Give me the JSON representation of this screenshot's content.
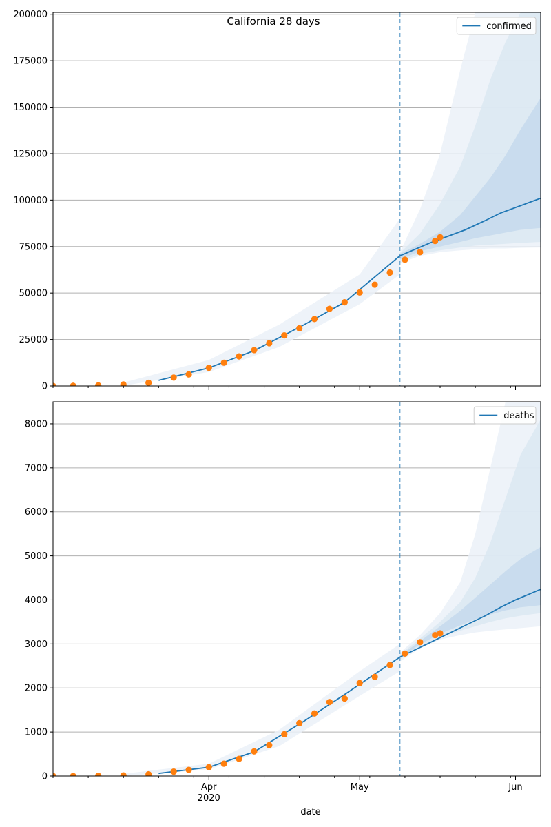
{
  "chart_data": [
    {
      "type": "line",
      "title": "California 28 days",
      "xlabel": "",
      "ylabel": "",
      "ylim": [
        0,
        201000
      ],
      "grid": "y-major",
      "legend": "top-right",
      "yticks": [
        0,
        25000,
        50000,
        75000,
        100000,
        125000,
        150000,
        175000,
        200000
      ],
      "xlim": [
        "2020-03-01",
        "2020-06-06"
      ],
      "xticks_major": [
        {
          "date": "2020-04-01",
          "label": "Apr",
          "label2": "2020"
        },
        {
          "date": "2020-05-01",
          "label": "May",
          "label2": ""
        },
        {
          "date": "2020-06-01",
          "label": "Jun",
          "label2": ""
        }
      ],
      "vline_date": "2020-05-09",
      "series": [
        {
          "name": "confirmed",
          "kind": "line",
          "color": "#1f77b4",
          "x": [
            "2020-03-22",
            "2020-04-01",
            "2020-04-10",
            "2020-04-20",
            "2020-04-28",
            "2020-05-09",
            "2020-05-15",
            "2020-05-22",
            "2020-05-26",
            "2020-05-29",
            "2020-06-01",
            "2020-06-06"
          ],
          "y": [
            3000,
            9700,
            19000,
            33000,
            45000,
            70000,
            77000,
            84000,
            89000,
            93000,
            96000,
            101000
          ]
        },
        {
          "name": "",
          "kind": "scatter",
          "color": "#ff7f0e",
          "x": [
            "2020-03-01",
            "2020-03-05",
            "2020-03-10",
            "2020-03-15",
            "2020-03-20",
            "2020-03-25",
            "2020-03-28",
            "2020-04-01",
            "2020-04-04",
            "2020-04-07",
            "2020-04-10",
            "2020-04-13",
            "2020-04-16",
            "2020-04-19",
            "2020-04-22",
            "2020-04-25",
            "2020-04-28",
            "2020-05-01",
            "2020-05-04",
            "2020-05-07",
            "2020-05-10",
            "2020-05-13",
            "2020-05-16",
            "2020-05-17"
          ],
          "y": [
            0,
            100,
            300,
            800,
            1700,
            4500,
            6200,
            9800,
            12500,
            15900,
            19300,
            23000,
            27200,
            31000,
            36000,
            41500,
            45000,
            50300,
            54500,
            61000,
            67900,
            72000,
            78000,
            80000
          ]
        }
      ],
      "bands": [
        {
          "shade": 1,
          "x": [
            "2020-03-15",
            "2020-04-01",
            "2020-04-15",
            "2020-05-01",
            "2020-05-09"
          ],
          "lower": [
            200,
            7500,
            21000,
            44000,
            60000
          ],
          "upper": [
            1800,
            14000,
            33000,
            60000,
            90000
          ]
        },
        {
          "shade": 1,
          "x": [
            "2020-05-09",
            "2020-05-13",
            "2020-05-17",
            "2020-05-21",
            "2020-05-24",
            "2020-05-27",
            "2020-05-30",
            "2020-06-02",
            "2020-06-06"
          ],
          "lower": [
            66000,
            70000,
            72000,
            73000,
            73500,
            74000,
            74000,
            74300,
            74500
          ],
          "upper": [
            72000,
            95000,
            125000,
            170000,
            201000,
            201000,
            201000,
            201000,
            201000
          ]
        },
        {
          "shade": 2,
          "x": [
            "2020-05-09",
            "2020-05-13",
            "2020-05-17",
            "2020-05-21",
            "2020-05-24",
            "2020-05-27",
            "2020-05-30",
            "2020-06-02",
            "2020-06-06"
          ],
          "lower": [
            67000,
            71000,
            73000,
            74500,
            75500,
            76000,
            76500,
            77000,
            77500
          ],
          "upper": [
            71500,
            82000,
            98000,
            118000,
            140000,
            165000,
            185000,
            201000,
            201000
          ]
        },
        {
          "shade": 3,
          "x": [
            "2020-05-09",
            "2020-05-13",
            "2020-05-17",
            "2020-05-21",
            "2020-05-24",
            "2020-05-27",
            "2020-05-30",
            "2020-06-02",
            "2020-06-06"
          ],
          "lower": [
            68000,
            72500,
            75000,
            77500,
            79500,
            81000,
            82500,
            84000,
            85000
          ],
          "upper": [
            71000,
            76500,
            83000,
            92000,
            102000,
            112000,
            124000,
            138000,
            155000
          ]
        }
      ]
    },
    {
      "type": "line",
      "title": "",
      "xlabel": "date",
      "ylabel": "",
      "ylim": [
        0,
        8500
      ],
      "grid": "y-major",
      "legend": "top-right",
      "yticks": [
        0,
        1000,
        2000,
        3000,
        4000,
        5000,
        6000,
        7000,
        8000
      ],
      "xlim": [
        "2020-03-01",
        "2020-06-06"
      ],
      "xticks_major": [
        {
          "date": "2020-04-01",
          "label": "Apr",
          "label2": "2020"
        },
        {
          "date": "2020-05-01",
          "label": "May",
          "label2": ""
        },
        {
          "date": "2020-06-01",
          "label": "Jun",
          "label2": ""
        }
      ],
      "vline_date": "2020-05-09",
      "series": [
        {
          "name": "deaths",
          "kind": "line",
          "color": "#1f77b4",
          "x": [
            "2020-03-22",
            "2020-04-01",
            "2020-04-10",
            "2020-04-20",
            "2020-04-28",
            "2020-05-09",
            "2020-05-15",
            "2020-05-22",
            "2020-05-26",
            "2020-05-29",
            "2020-06-01",
            "2020-06-06"
          ],
          "y": [
            60,
            200,
            550,
            1250,
            1850,
            2700,
            3030,
            3420,
            3640,
            3830,
            4000,
            4240
          ]
        },
        {
          "name": "",
          "kind": "scatter",
          "color": "#ff7f0e",
          "x": [
            "2020-03-01",
            "2020-03-05",
            "2020-03-10",
            "2020-03-15",
            "2020-03-20",
            "2020-03-25",
            "2020-03-28",
            "2020-04-01",
            "2020-04-04",
            "2020-04-07",
            "2020-04-10",
            "2020-04-13",
            "2020-04-16",
            "2020-04-19",
            "2020-04-22",
            "2020-04-25",
            "2020-04-28",
            "2020-05-01",
            "2020-05-04",
            "2020-05-07",
            "2020-05-10",
            "2020-05-13",
            "2020-05-16",
            "2020-05-17"
          ],
          "y": [
            0,
            0,
            5,
            15,
            40,
            100,
            140,
            200,
            280,
            390,
            560,
            700,
            950,
            1200,
            1420,
            1680,
            1760,
            2110,
            2250,
            2520,
            2780,
            3040,
            3200,
            3240
          ]
        }
      ],
      "bands": [
        {
          "shade": 1,
          "x": [
            "2020-03-15",
            "2020-04-01",
            "2020-04-15",
            "2020-05-01",
            "2020-05-09"
          ],
          "lower": [
            0,
            150,
            680,
            1820,
            2380
          ],
          "upper": [
            50,
            280,
            1050,
            2380,
            3000
          ]
        },
        {
          "shade": 1,
          "x": [
            "2020-05-09",
            "2020-05-13",
            "2020-05-17",
            "2020-05-21",
            "2020-05-24",
            "2020-05-27",
            "2020-05-30",
            "2020-06-02",
            "2020-06-06"
          ],
          "lower": [
            2600,
            2900,
            3100,
            3200,
            3260,
            3300,
            3330,
            3360,
            3400
          ],
          "upper": [
            2800,
            3200,
            3700,
            4400,
            5500,
            7000,
            8500,
            8500,
            8500
          ]
        },
        {
          "shade": 2,
          "x": [
            "2020-05-09",
            "2020-05-13",
            "2020-05-17",
            "2020-05-21",
            "2020-05-24",
            "2020-05-27",
            "2020-05-30",
            "2020-06-02",
            "2020-06-06"
          ],
          "lower": [
            2650,
            2950,
            3150,
            3300,
            3400,
            3500,
            3580,
            3640,
            3700
          ],
          "upper": [
            2760,
            3120,
            3500,
            3950,
            4500,
            5300,
            6300,
            7300,
            8100
          ]
        },
        {
          "shade": 3,
          "x": [
            "2020-05-09",
            "2020-05-13",
            "2020-05-17",
            "2020-05-21",
            "2020-05-24",
            "2020-05-27",
            "2020-05-30",
            "2020-06-02",
            "2020-06-06"
          ],
          "lower": [
            2680,
            2990,
            3230,
            3420,
            3560,
            3670,
            3760,
            3830,
            3880
          ],
          "upper": [
            2730,
            3060,
            3400,
            3750,
            4050,
            4350,
            4650,
            4930,
            5200
          ]
        }
      ]
    }
  ],
  "colors": {
    "line": "#1f77b4",
    "points": "#ff7f0e",
    "band1": "#ebf1f8",
    "band2": "#dbe7f2",
    "band3": "#c6d9ec",
    "grid": "#b0b0b0",
    "vline": "#1f77b4"
  }
}
